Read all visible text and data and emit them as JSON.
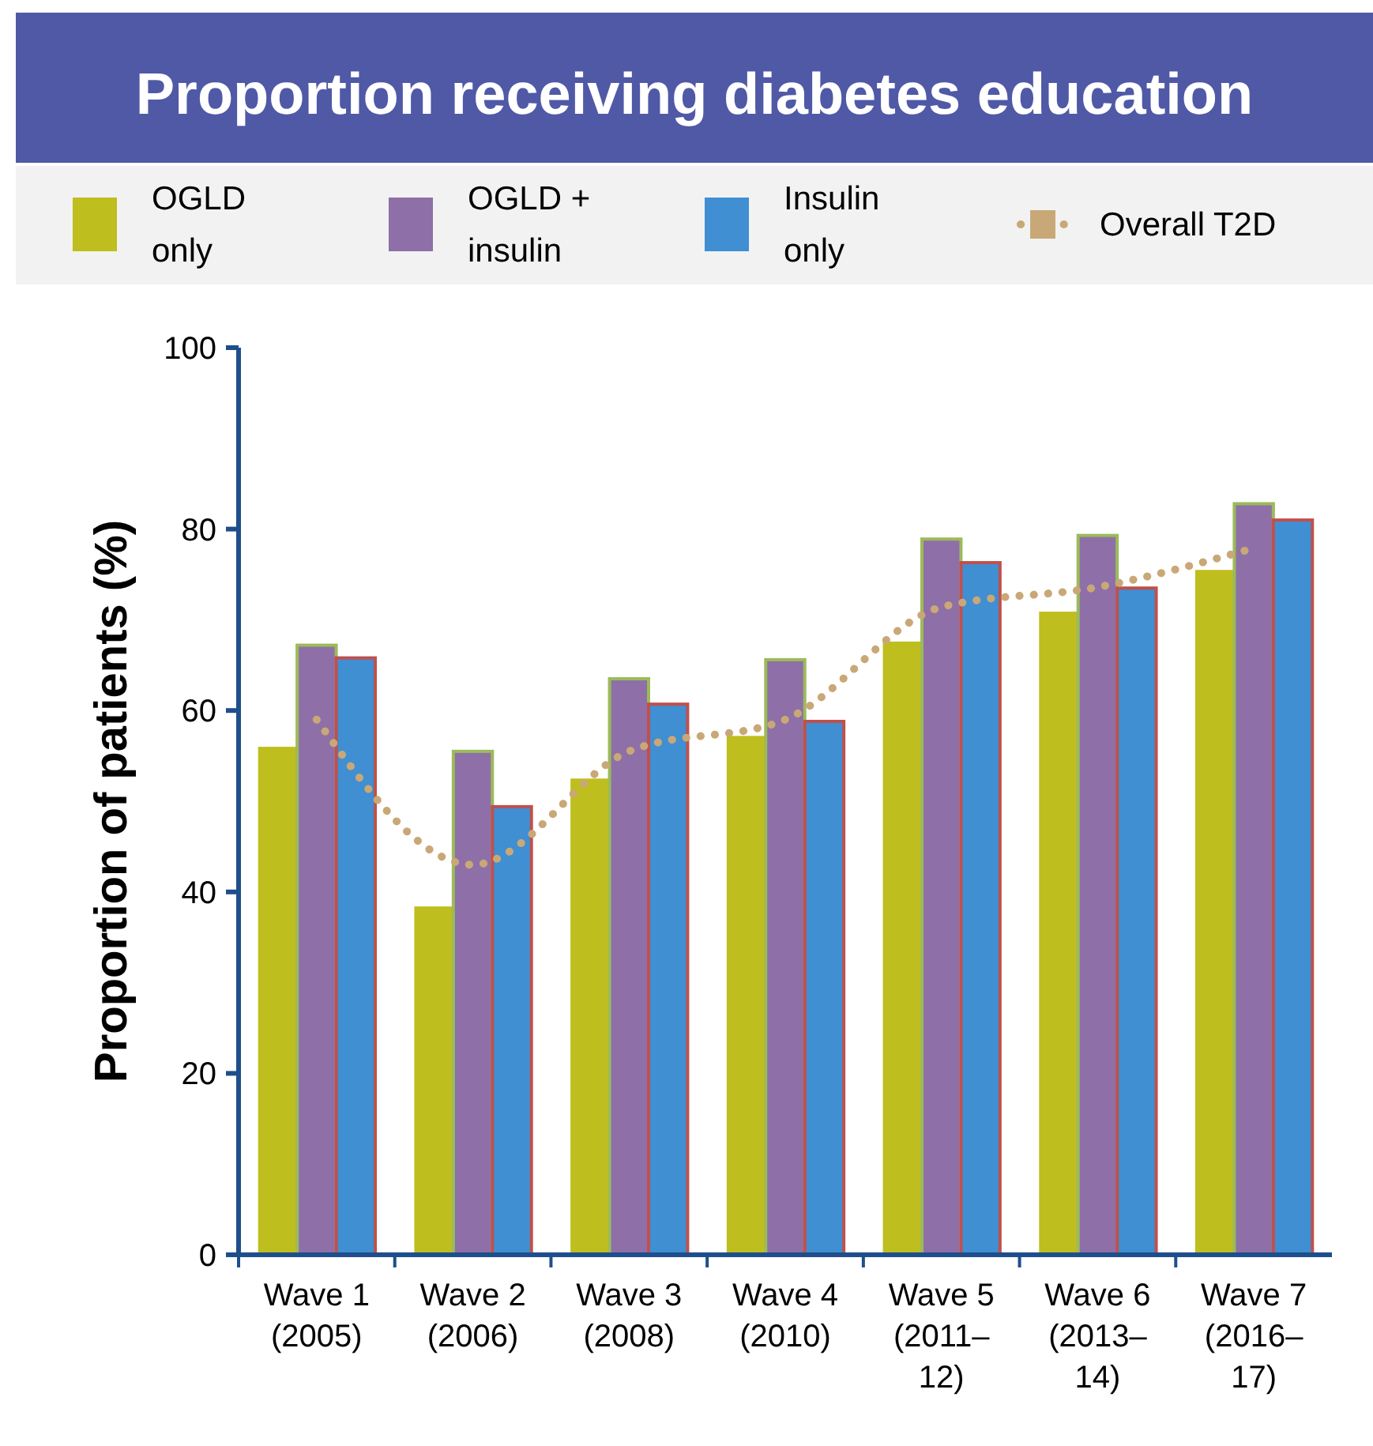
{
  "chart_data": {
    "type": "bar",
    "title": "Proportion receiving diabetes education",
    "ylabel": "Proportion of patients (%)",
    "categories": [
      "Wave 1 (2005)",
      "Wave 2 (2006)",
      "Wave 3 (2008)",
      "Wave 4 (2010)",
      "Wave 5 (2011–12)",
      "Wave 6 (2013–14)",
      "Wave 7 (2016–17)"
    ],
    "series": [
      {
        "name": "OGLD only",
        "color": "#bebe1e",
        "values": [
          56.0,
          38.4,
          52.5,
          57.2,
          67.6,
          70.9,
          75.5
        ]
      },
      {
        "name": "OGLD + insulin",
        "color": "#8f6fa8",
        "values": [
          67.2,
          55.5,
          63.5,
          65.6,
          78.9,
          79.3,
          82.8
        ]
      },
      {
        "name": "Insulin only",
        "color": "#3f8fd2",
        "values": [
          65.8,
          49.4,
          60.7,
          58.8,
          76.3,
          73.5,
          81.0
        ]
      },
      {
        "name": "Overall T2D",
        "type": "line",
        "color": "#c9a877",
        "line_style": "dotted",
        "marker": "none",
        "values": [
          59,
          43,
          55.5,
          59,
          71.4,
          73.6,
          77.9
        ]
      }
    ],
    "ylim": [
      0,
      100
    ],
    "yticks": [
      0,
      20,
      40,
      60,
      80,
      100
    ],
    "grid": false,
    "legend": "top"
  }
}
